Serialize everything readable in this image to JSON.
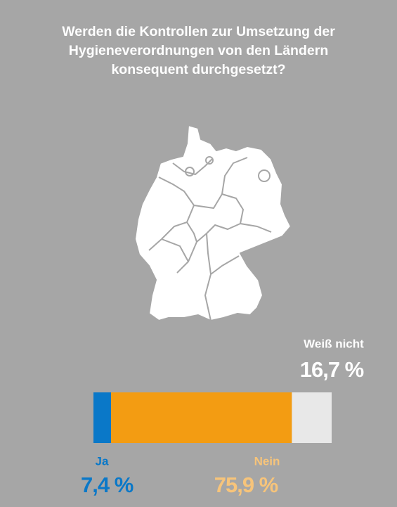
{
  "chart_data": {
    "type": "stacked-bar",
    "title": "Werden die Kontrollen zur Umsetzung der Hygieneverordnungen von den Ländern konsequent durchgesetzt?",
    "xlim": [
      0,
      100
    ],
    "series": [
      {
        "name": "Ja",
        "color": "#0a78c8",
        "label_color": "#0a78c8",
        "values": [
          7.4
        ],
        "value_labels": [
          "7,4 %"
        ]
      },
      {
        "name": "Nein",
        "color": "#f39c12",
        "label_color": "#f7c47a",
        "values": [
          75.9
        ],
        "value_labels": [
          "75,9 %"
        ]
      },
      {
        "name": "Weiß nicht",
        "color": "#e8e8e8",
        "label_color": "#ffffff",
        "values": [
          16.7
        ],
        "value_labels": [
          "16,7 %"
        ]
      }
    ]
  }
}
